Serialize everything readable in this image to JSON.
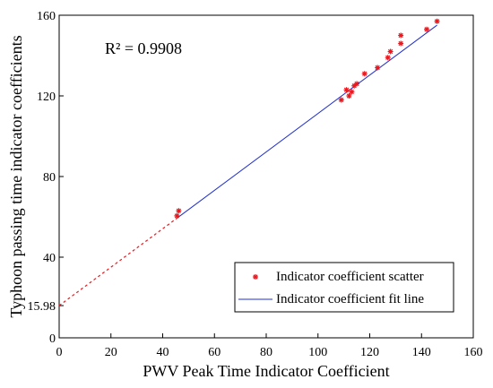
{
  "chart_data": {
    "type": "scatter",
    "title": "",
    "xlabel": "PWV Peak Time Indicator Coefficient",
    "ylabel": "Typhoon passing time indicator coefficients",
    "xlim": [
      0,
      160
    ],
    "ylim": [
      0,
      160
    ],
    "x_ticks": [
      0,
      20,
      40,
      60,
      80,
      100,
      120,
      140,
      160
    ],
    "y_ticks": [
      0,
      15.98,
      40,
      80,
      120,
      160
    ],
    "grid": false,
    "legend_position": "bottom-right",
    "annotations": [
      "R² = 0.9908"
    ],
    "colors": {
      "scatter": "#e8191f",
      "fit_line": "#1f2fd0",
      "axis": "#000000"
    },
    "series": [
      {
        "name": "Indicator coefficient scatter",
        "type": "scatter",
        "marker": "asterisk",
        "points": [
          [
            45.5,
            60.5
          ],
          [
            46.2,
            63
          ],
          [
            109,
            118
          ],
          [
            111,
            123
          ],
          [
            112,
            120
          ],
          [
            113,
            122
          ],
          [
            114,
            125
          ],
          [
            115,
            126
          ],
          [
            118,
            131
          ],
          [
            123,
            134
          ],
          [
            127,
            139
          ],
          [
            128,
            142
          ],
          [
            132,
            146
          ],
          [
            132,
            150
          ],
          [
            142,
            153
          ],
          [
            146,
            157
          ]
        ]
      },
      {
        "name": "Indicator coefficient fit line",
        "type": "line",
        "intercept": 15.98,
        "slope": 0.9528,
        "x_start": 0,
        "x_solid_from": 46,
        "x_end": 146
      }
    ]
  }
}
